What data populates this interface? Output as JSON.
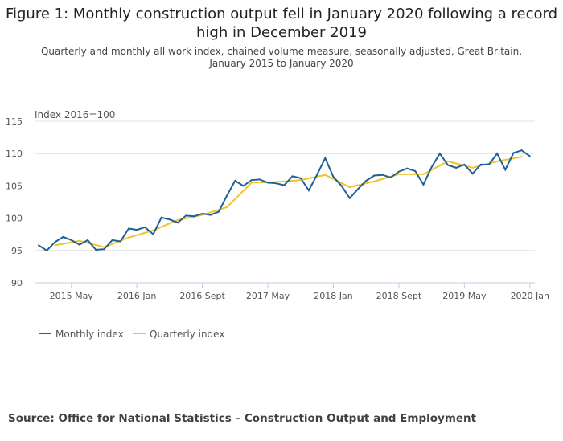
{
  "title": "Figure 1: Monthly construction output fell in January 2020 following a record high in December 2019",
  "subtitle": "Quarterly and monthly all work index, chained volume measure, seasonally adjusted, Great Britain, January 2015 to January 2020",
  "source": "Source: Office for National Statistics – Construction Output and Employment",
  "chart_data": {
    "type": "line",
    "ylabel": "Index 2016=100",
    "ylim": [
      90,
      115
    ],
    "yticks": [
      "90",
      "95",
      "100",
      "105",
      "110",
      "115"
    ],
    "xrange": [
      "2015-01",
      "2020-01"
    ],
    "xticks": [
      {
        "date": "2015-05",
        "label": "2015 May"
      },
      {
        "date": "2016-01",
        "label": "2016 Jan"
      },
      {
        "date": "2016-09",
        "label": "2016 Sept"
      },
      {
        "date": "2017-05",
        "label": "2017 May"
      },
      {
        "date": "2018-01",
        "label": "2018 Jan"
      },
      {
        "date": "2018-09",
        "label": "2018 Sept"
      },
      {
        "date": "2019-05",
        "label": "2019 May"
      },
      {
        "date": "2020-01",
        "label": "2020 Jan"
      }
    ],
    "grid": "horizontal",
    "legend": "bottom-left",
    "series": [
      {
        "name": "Monthly index",
        "color": "#206095",
        "start": "2015-01",
        "values": [
          95.8,
          95.0,
          96.3,
          97.1,
          96.6,
          95.9,
          96.6,
          95.1,
          95.2,
          96.6,
          96.4,
          98.4,
          98.2,
          98.6,
          97.5,
          100.1,
          99.8,
          99.3,
          100.4,
          100.3,
          100.7,
          100.5,
          101.0,
          103.5,
          105.8,
          105.0,
          105.9,
          106.0,
          105.5,
          105.4,
          105.1,
          106.5,
          106.2,
          104.3,
          106.7,
          109.3,
          106.4,
          105.0,
          103.1,
          104.5,
          105.8,
          106.6,
          106.7,
          106.3,
          107.2,
          107.7,
          107.3,
          105.2,
          107.9,
          110.0,
          108.2,
          107.8,
          108.3,
          106.9,
          108.3,
          108.3,
          110.0,
          107.5,
          110.1,
          110.5,
          109.6
        ]
      },
      {
        "name": "Quarterly index",
        "color": "#f0c330",
        "dates": [
          "2015-03",
          "2015-06",
          "2015-09",
          "2015-12",
          "2016-03",
          "2016-06",
          "2016-09",
          "2016-12",
          "2017-03",
          "2017-06",
          "2017-09",
          "2017-12",
          "2018-03",
          "2018-06",
          "2018-09",
          "2018-12",
          "2019-03",
          "2019-06",
          "2019-09",
          "2019-12"
        ],
        "values": [
          95.8,
          96.5,
          95.5,
          97.0,
          98.1,
          99.7,
          100.5,
          101.7,
          105.5,
          105.6,
          105.9,
          106.7,
          104.8,
          105.7,
          106.8,
          106.8,
          108.8,
          107.8,
          108.8,
          109.5
        ]
      }
    ]
  }
}
